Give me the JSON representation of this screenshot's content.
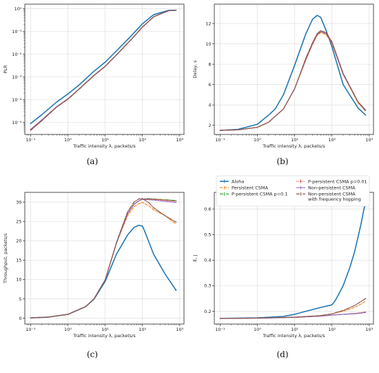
{
  "chart_data": [
    {
      "panel": "(a)",
      "type": "line",
      "xscale": "log",
      "yscale": "log",
      "xlabel": "Traffic intensity λ, packets/s",
      "ylabel": "PLR",
      "xlim": [
        0.07,
        1300
      ],
      "ylim": [
        3e-06,
        1.6
      ],
      "xticks": [
        0.1,
        1,
        10,
        100,
        1000
      ],
      "xtick_labels": [
        "10⁻¹",
        "10⁰",
        "10¹",
        "10²",
        "10³"
      ],
      "yticks": [
        1e-05,
        0.0001,
        0.001,
        0.01,
        0.1,
        1
      ],
      "ytick_labels": [
        "10⁻⁵",
        "10⁻⁴",
        "10⁻³",
        "10⁻²",
        "10⁻¹",
        "10⁰"
      ],
      "grid": true,
      "series": [
        {
          "key": "aloha",
          "x": [
            0.1,
            0.2,
            0.5,
            1,
            2,
            5,
            10,
            20,
            50,
            100,
            200,
            500,
            800
          ],
          "y": [
            9e-06,
            2.2e-05,
            8e-05,
            0.00018,
            0.00045,
            0.0018,
            0.0045,
            0.014,
            0.065,
            0.22,
            0.55,
            0.85,
            0.87
          ]
        },
        {
          "key": "persistent",
          "x": [
            0.1,
            0.2,
            0.5,
            1,
            2,
            5,
            10,
            20,
            50,
            100,
            200,
            500,
            800
          ],
          "y": [
            5e-06,
            1.3e-05,
            5e-05,
            0.00011,
            0.0003,
            0.0012,
            0.003,
            0.0095,
            0.045,
            0.16,
            0.45,
            0.82,
            0.86
          ]
        },
        {
          "key": "p01",
          "x": [
            0.1,
            0.2,
            0.5,
            1,
            2,
            5,
            10,
            20,
            50,
            100,
            200,
            500,
            800
          ],
          "y": [
            5e-06,
            1.3e-05,
            5e-05,
            0.00011,
            0.0003,
            0.0012,
            0.003,
            0.0095,
            0.045,
            0.16,
            0.45,
            0.82,
            0.86
          ]
        },
        {
          "key": "p001",
          "x": [
            0.1,
            0.2,
            0.5,
            1,
            2,
            5,
            10,
            20,
            50,
            100,
            200,
            500,
            800
          ],
          "y": [
            5e-06,
            1.3e-05,
            5e-05,
            0.00011,
            0.0003,
            0.0012,
            0.003,
            0.0095,
            0.045,
            0.16,
            0.45,
            0.82,
            0.86
          ]
        },
        {
          "key": "nonpersistent",
          "x": [
            0.1,
            0.2,
            0.5,
            1,
            2,
            5,
            10,
            20,
            50,
            100,
            200,
            500,
            800
          ],
          "y": [
            5e-06,
            1.3e-05,
            5e-05,
            0.00011,
            0.0003,
            0.0012,
            0.003,
            0.0095,
            0.045,
            0.16,
            0.45,
            0.82,
            0.86
          ]
        },
        {
          "key": "hopping",
          "x": [
            0.1,
            0.2,
            0.5,
            1,
            2,
            5,
            10,
            20,
            50,
            100,
            200,
            500,
            800
          ],
          "y": [
            4.5e-06,
            1.2e-05,
            4.8e-05,
            0.000105,
            0.00029,
            0.00115,
            0.0029,
            0.0092,
            0.044,
            0.155,
            0.44,
            0.82,
            0.86
          ]
        }
      ]
    },
    {
      "panel": "(b)",
      "type": "line",
      "xscale": "log",
      "yscale": "linear",
      "xlabel": "Traffic intensity λ, packets/s",
      "ylabel": "Delay, s",
      "xlim": [
        0.07,
        1300
      ],
      "ylim": [
        1.1,
        13.9
      ],
      "xticks": [
        0.1,
        1,
        10,
        100,
        1000
      ],
      "xtick_labels": [
        "10⁻¹",
        "10⁰",
        "10¹",
        "10²",
        "10³"
      ],
      "yticks": [
        2,
        4,
        6,
        8,
        10,
        12
      ],
      "ytick_labels": [
        "2",
        "4",
        "6",
        "8",
        "10",
        "12"
      ],
      "grid": true,
      "series": [
        {
          "key": "aloha",
          "x": [
            0.1,
            0.3,
            1,
            2,
            3,
            5,
            10,
            20,
            30,
            40,
            50,
            70,
            100,
            200,
            500,
            800
          ],
          "y": [
            1.5,
            1.6,
            2.1,
            3.0,
            3.6,
            5.0,
            7.9,
            11.0,
            12.4,
            12.8,
            12.6,
            11.3,
            9.7,
            6.0,
            3.7,
            3.0
          ]
        },
        {
          "key": "persistent",
          "x": [
            0.1,
            0.3,
            1,
            2,
            5,
            10,
            20,
            30,
            40,
            50,
            70,
            100,
            200,
            500,
            800
          ],
          "y": [
            1.5,
            1.55,
            1.8,
            2.3,
            3.6,
            5.6,
            8.4,
            9.9,
            10.8,
            11.1,
            10.9,
            10.0,
            7.0,
            4.2,
            3.4
          ]
        },
        {
          "key": "p01",
          "x": [
            0.1,
            0.3,
            1,
            2,
            5,
            10,
            20,
            30,
            40,
            50,
            70,
            100,
            200,
            500,
            800
          ],
          "y": [
            1.5,
            1.55,
            1.8,
            2.3,
            3.6,
            5.6,
            8.5,
            10.0,
            10.9,
            11.2,
            11.0,
            10.1,
            7.0,
            4.3,
            3.5
          ]
        },
        {
          "key": "p001",
          "x": [
            0.1,
            0.3,
            1,
            2,
            5,
            10,
            20,
            30,
            40,
            50,
            70,
            100,
            200,
            500,
            800
          ],
          "y": [
            1.5,
            1.55,
            1.8,
            2.3,
            3.6,
            5.6,
            8.5,
            10.0,
            10.9,
            11.2,
            11.0,
            10.1,
            7.0,
            4.3,
            3.5
          ]
        },
        {
          "key": "nonpersistent",
          "x": [
            0.1,
            0.3,
            1,
            2,
            5,
            10,
            20,
            30,
            40,
            50,
            70,
            100,
            200,
            500,
            800
          ],
          "y": [
            1.5,
            1.55,
            1.8,
            2.3,
            3.6,
            5.6,
            8.5,
            10.0,
            10.9,
            11.2,
            11.0,
            10.1,
            7.0,
            4.3,
            3.5
          ]
        },
        {
          "key": "hopping",
          "x": [
            0.1,
            0.3,
            1,
            2,
            5,
            10,
            20,
            30,
            40,
            50,
            70,
            100,
            200,
            500,
            800
          ],
          "y": [
            1.5,
            1.55,
            1.8,
            2.3,
            3.6,
            5.6,
            8.6,
            10.1,
            11.0,
            11.3,
            11.1,
            10.2,
            7.1,
            4.3,
            3.4
          ]
        }
      ]
    },
    {
      "panel": "(c)",
      "type": "line",
      "xscale": "log",
      "yscale": "linear",
      "xlabel": "Traffic intensity λ, packets/s",
      "ylabel": "Throughput, packets/s",
      "xlim": [
        0.07,
        1300
      ],
      "ylim": [
        -1.5,
        32.5
      ],
      "xticks": [
        0.1,
        1,
        10,
        100,
        1000
      ],
      "xtick_labels": [
        "10⁻¹",
        "10⁰",
        "10¹",
        "10²",
        "10³"
      ],
      "yticks": [
        0,
        5,
        10,
        15,
        20,
        25,
        30
      ],
      "ytick_labels": [
        "0",
        "5",
        "10",
        "15",
        "20",
        "25",
        "30"
      ],
      "grid": true,
      "series": [
        {
          "key": "aloha",
          "x": [
            0.1,
            0.3,
            1,
            3,
            5,
            10,
            20,
            40,
            60,
            80,
            100,
            120,
            200,
            400,
            800
          ],
          "y": [
            0.1,
            0.3,
            1.0,
            3.0,
            4.9,
            9.5,
            16.5,
            21.5,
            23.5,
            24.0,
            23.8,
            22.0,
            16.5,
            11.5,
            7.2
          ]
        },
        {
          "key": "persistent",
          "x": [
            0.1,
            0.3,
            1,
            3,
            5,
            10,
            20,
            40,
            60,
            80,
            100,
            150,
            200,
            400,
            800
          ],
          "y": [
            0.1,
            0.3,
            1.0,
            3.0,
            5.0,
            9.9,
            19.3,
            26.5,
            28.8,
            29.6,
            29.9,
            29.0,
            28.0,
            26.5,
            24.3
          ]
        },
        {
          "key": "p01",
          "x": [
            0.1,
            0.3,
            1,
            3,
            5,
            10,
            20,
            40,
            60,
            80,
            100,
            150,
            200,
            400,
            800
          ],
          "y": [
            0.1,
            0.3,
            1.0,
            3.0,
            5.0,
            9.9,
            19.3,
            27.0,
            29.5,
            30.3,
            30.8,
            30.9,
            30.8,
            30.6,
            30.4
          ]
        },
        {
          "key": "p001",
          "x": [
            0.1,
            0.3,
            1,
            3,
            5,
            10,
            20,
            40,
            60,
            80,
            100,
            150,
            200,
            400,
            800
          ],
          "y": [
            0.1,
            0.3,
            1.0,
            3.0,
            5.0,
            9.9,
            19.3,
            27.0,
            29.4,
            30.3,
            30.7,
            30.8,
            30.7,
            30.5,
            30.2
          ]
        },
        {
          "key": "nonpersistent",
          "x": [
            0.1,
            0.3,
            1,
            3,
            5,
            10,
            20,
            40,
            60,
            80,
            100,
            150,
            200,
            400,
            800
          ],
          "y": [
            0.1,
            0.3,
            1.0,
            3.0,
            5.0,
            9.9,
            19.3,
            27.0,
            29.4,
            30.3,
            30.7,
            30.6,
            30.5,
            30.2,
            29.9
          ]
        },
        {
          "key": "hopping",
          "x": [
            0.1,
            0.3,
            1,
            3,
            5,
            10,
            20,
            40,
            60,
            80,
            100,
            150,
            200,
            400,
            800
          ],
          "y": [
            0.1,
            0.3,
            1.0,
            3.0,
            5.0,
            9.9,
            19.5,
            27.5,
            30.0,
            30.8,
            30.9,
            29.8,
            28.5,
            26.5,
            24.8
          ]
        }
      ]
    },
    {
      "panel": "(d)",
      "type": "line",
      "xscale": "log",
      "yscale": "linear",
      "xlabel": "Traffic intensity λ, packets/s",
      "ylabel": "E, J",
      "xlim": [
        0.07,
        1300
      ],
      "ylim": [
        0.15,
        0.665
      ],
      "xticks": [
        0.1,
        1,
        10,
        100,
        1000
      ],
      "xtick_labels": [
        "10⁻¹",
        "10⁰",
        "10¹",
        "10²",
        "10³"
      ],
      "yticks": [
        0.2,
        0.3,
        0.4,
        0.5,
        0.6
      ],
      "ytick_labels": [
        "0.2",
        "0.3",
        "0.4",
        "0.5",
        "0.6"
      ],
      "grid": true,
      "legend_placement": "above",
      "series": [
        {
          "key": "aloha",
          "x": [
            0.1,
            1,
            5,
            10,
            20,
            50,
            100,
            120,
            150,
            200,
            300,
            400,
            500,
            600,
            700,
            800
          ],
          "y": [
            0.172,
            0.174,
            0.18,
            0.188,
            0.2,
            0.215,
            0.225,
            0.24,
            0.265,
            0.3,
            0.37,
            0.43,
            0.49,
            0.54,
            0.59,
            0.63
          ]
        },
        {
          "key": "persistent",
          "x": [
            0.1,
            1,
            10,
            50,
            100,
            200,
            400,
            600,
            800
          ],
          "y": [
            0.172,
            0.173,
            0.177,
            0.183,
            0.19,
            0.2,
            0.215,
            0.228,
            0.24
          ]
        },
        {
          "key": "p01",
          "x": [
            0.1,
            1,
            10,
            50,
            100,
            200,
            400,
            600,
            800
          ],
          "y": [
            0.172,
            0.173,
            0.176,
            0.181,
            0.185,
            0.188,
            0.191,
            0.194,
            0.196
          ]
        },
        {
          "key": "p001",
          "x": [
            0.1,
            1,
            10,
            50,
            100,
            200,
            400,
            600,
            800
          ],
          "y": [
            0.172,
            0.173,
            0.176,
            0.181,
            0.185,
            0.188,
            0.191,
            0.194,
            0.197
          ]
        },
        {
          "key": "nonpersistent",
          "x": [
            0.1,
            1,
            10,
            50,
            100,
            200,
            400,
            600,
            800
          ],
          "y": [
            0.172,
            0.173,
            0.176,
            0.181,
            0.185,
            0.188,
            0.19,
            0.193,
            0.195
          ]
        },
        {
          "key": "hopping",
          "x": [
            0.1,
            1,
            10,
            50,
            100,
            200,
            400,
            600,
            800
          ],
          "y": [
            0.172,
            0.173,
            0.177,
            0.183,
            0.19,
            0.203,
            0.222,
            0.238,
            0.25
          ]
        }
      ]
    }
  ],
  "legend": [
    {
      "key": "aloha",
      "label": "Aloha"
    },
    {
      "key": "persistent",
      "label": "Persistent CSMA"
    },
    {
      "key": "p01",
      "label": "P-persistent CSMA p=0.1"
    },
    {
      "key": "p001",
      "label": "P-persistent CSMA p=0.01"
    },
    {
      "key": "nonpersistent",
      "label": "Non-persistent CSMA"
    },
    {
      "key": "hopping",
      "label": "Non-persistent CSMA\nwith frequency hopping"
    }
  ],
  "styles": {
    "aloha": {
      "color": "#1f77b4",
      "dash": "",
      "width": 1.6
    },
    "persistent": {
      "color": "#ff7f0e",
      "dash": "4,2",
      "width": 1.1
    },
    "p01": {
      "color": "#2ca02c",
      "dash": "5,1.5,1,1.5",
      "width": 1.1
    },
    "p001": {
      "color": "#d62728",
      "dash": "1.2,1.4",
      "width": 1.1
    },
    "nonpersistent": {
      "color": "#9467bd",
      "dash": "",
      "width": 1.1
    },
    "hopping": {
      "color": "#8c564b",
      "dash": "5,1.5,1.2,1.5",
      "width": 1.3
    }
  }
}
